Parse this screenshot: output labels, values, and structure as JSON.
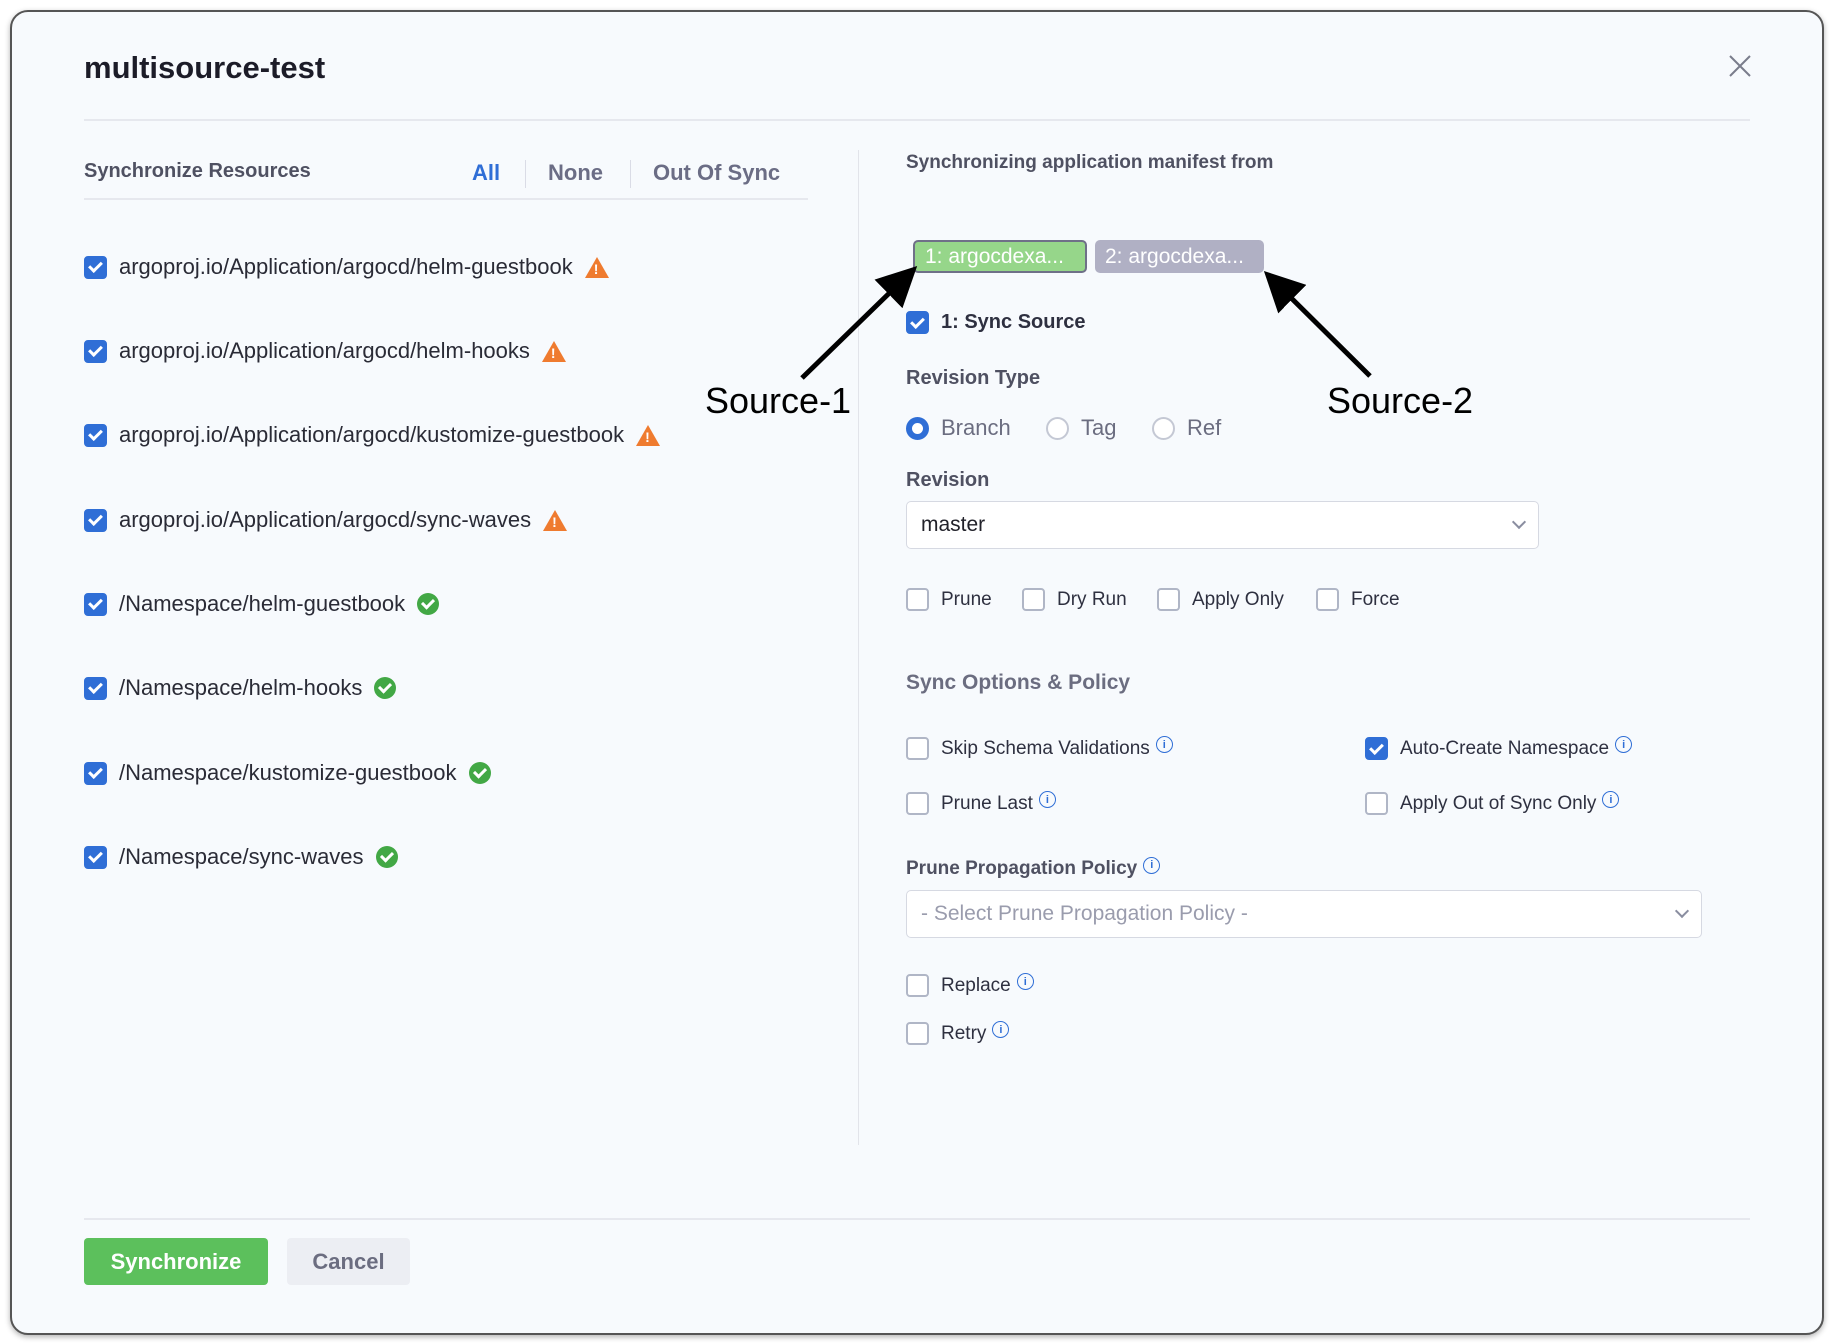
{
  "title": "multisource-test",
  "left": {
    "heading": "Synchronize Resources",
    "tabs": [
      "All",
      "None",
      "Out Of Sync"
    ],
    "resources": [
      {
        "name": "argoproj.io/Application/argocd/helm-guestbook",
        "status": "warning"
      },
      {
        "name": "argoproj.io/Application/argocd/helm-hooks",
        "status": "warning"
      },
      {
        "name": "argoproj.io/Application/argocd/kustomize-guestbook",
        "status": "warning"
      },
      {
        "name": "argoproj.io/Application/argocd/sync-waves",
        "status": "warning"
      },
      {
        "name": "/Namespace/helm-guestbook",
        "status": "synced"
      },
      {
        "name": "/Namespace/helm-hooks",
        "status": "synced"
      },
      {
        "name": "/Namespace/kustomize-guestbook",
        "status": "synced"
      },
      {
        "name": "/Namespace/sync-waves",
        "status": "synced"
      }
    ]
  },
  "right": {
    "heading": "Synchronizing application manifest from",
    "sources": [
      "1: argocdexa...",
      "2: argocdexa..."
    ],
    "sync_source": "1: Sync Source",
    "revision_type_label": "Revision Type",
    "revision_types": [
      "Branch",
      "Tag",
      "Ref"
    ],
    "revision_label": "Revision",
    "revision_value": "master",
    "options": [
      "Prune",
      "Dry Run",
      "Apply Only",
      "Force"
    ],
    "policy_heading": "Sync Options & Policy",
    "policy": {
      "skip": "Skip Schema Validations",
      "auto_ns": "Auto-Create Namespace",
      "prune_last": "Prune Last",
      "apply_oos": "Apply Out of Sync Only"
    },
    "prune_policy_label": "Prune Propagation Policy",
    "prune_policy_placeholder": "- Select Prune Propagation Policy -",
    "replace": "Replace",
    "retry": "Retry"
  },
  "footer": {
    "synchronize": "Synchronize",
    "cancel": "Cancel"
  },
  "annotations": {
    "source1": "Source-1",
    "source2": "Source-2"
  },
  "colors": {
    "accent": "#2f6ed6",
    "success": "#5cc05c",
    "warning": "#ef7b2f"
  }
}
